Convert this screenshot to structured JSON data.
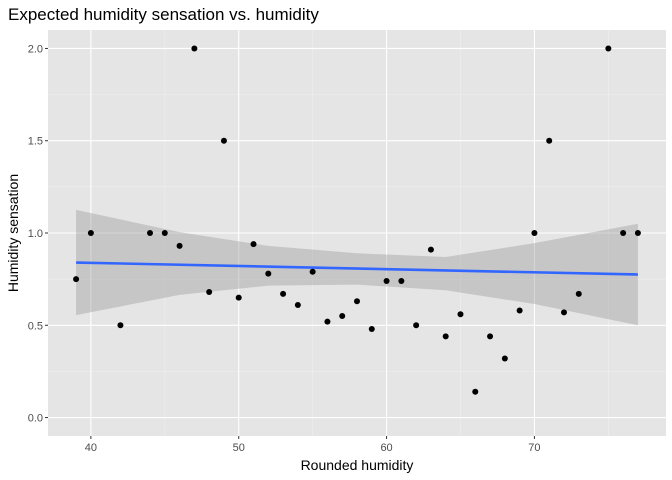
{
  "chart_data": {
    "type": "scatter",
    "title": "Expected humidity sensation vs. humidity",
    "xlabel": "Rounded humidity",
    "ylabel": "Humidity sensation",
    "xlim": [
      37.1,
      78.9
    ],
    "ylim": [
      -0.1,
      2.1
    ],
    "x_ticks": [
      40,
      50,
      60,
      70
    ],
    "x_tick_labels": [
      "40",
      "50",
      "60",
      "70"
    ],
    "y_ticks": [
      0,
      0.5,
      1,
      1.5,
      2
    ],
    "y_tick_labels": [
      "0.0",
      "0.5",
      "1.0",
      "1.5",
      "2.0"
    ],
    "grid": true,
    "legend": "none",
    "colors": {
      "panel": "#e5e5e5",
      "grid_major": "#ffffff",
      "grid_minor": "#f0f0f0",
      "point": "#000000",
      "trend": "#3366ff",
      "band": "#999999"
    },
    "points": [
      {
        "x": 39,
        "y": 0.75
      },
      {
        "x": 40,
        "y": 1.0
      },
      {
        "x": 42,
        "y": 0.5
      },
      {
        "x": 44,
        "y": 1.0
      },
      {
        "x": 45,
        "y": 1.0
      },
      {
        "x": 46,
        "y": 0.93
      },
      {
        "x": 47,
        "y": 2.0
      },
      {
        "x": 48,
        "y": 0.68
      },
      {
        "x": 49,
        "y": 1.5
      },
      {
        "x": 50,
        "y": 0.65
      },
      {
        "x": 51,
        "y": 0.94
      },
      {
        "x": 52,
        "y": 0.78
      },
      {
        "x": 53,
        "y": 0.67
      },
      {
        "x": 54,
        "y": 0.61
      },
      {
        "x": 55,
        "y": 0.79
      },
      {
        "x": 56,
        "y": 0.52
      },
      {
        "x": 57,
        "y": 0.55
      },
      {
        "x": 58,
        "y": 0.63
      },
      {
        "x": 59,
        "y": 0.48
      },
      {
        "x": 60,
        "y": 0.74
      },
      {
        "x": 61,
        "y": 0.74
      },
      {
        "x": 62,
        "y": 0.5
      },
      {
        "x": 63,
        "y": 0.91
      },
      {
        "x": 64,
        "y": 0.44
      },
      {
        "x": 65,
        "y": 0.56
      },
      {
        "x": 66,
        "y": 0.14
      },
      {
        "x": 67,
        "y": 0.44
      },
      {
        "x": 68,
        "y": 0.32
      },
      {
        "x": 69,
        "y": 0.58
      },
      {
        "x": 70,
        "y": 1.0
      },
      {
        "x": 71,
        "y": 1.5
      },
      {
        "x": 72,
        "y": 0.57
      },
      {
        "x": 73,
        "y": 0.67
      },
      {
        "x": 75,
        "y": 2.0
      },
      {
        "x": 76,
        "y": 1.0
      },
      {
        "x": 77,
        "y": 1.0
      }
    ],
    "trend_line": {
      "x": [
        39,
        77
      ],
      "y": [
        0.84,
        0.775
      ]
    },
    "confidence_band": {
      "x": [
        39,
        46,
        52,
        58,
        64,
        70,
        77
      ],
      "lower": [
        0.555,
        0.665,
        0.715,
        0.72,
        0.69,
        0.615,
        0.5
      ],
      "upper": [
        1.125,
        1.005,
        0.93,
        0.89,
        0.87,
        0.945,
        1.05
      ]
    }
  }
}
